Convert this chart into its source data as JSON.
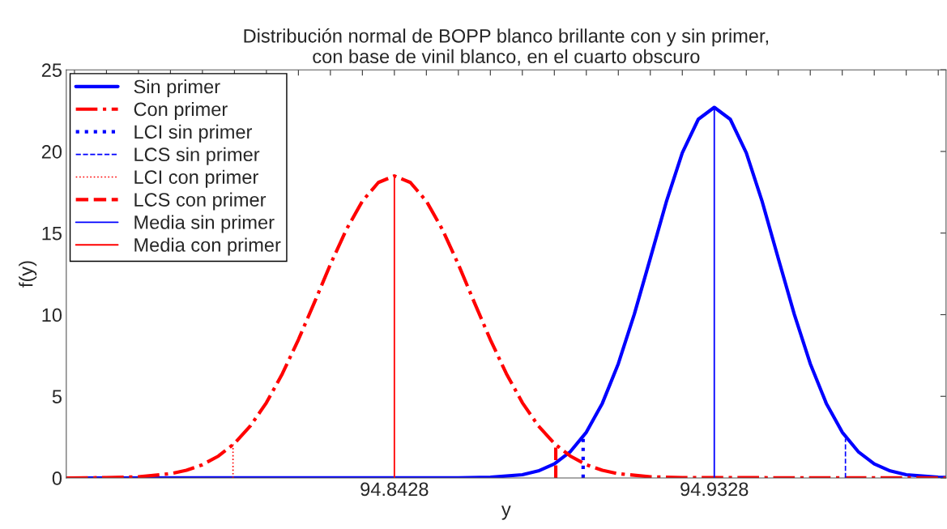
{
  "chart_data": {
    "type": "line",
    "title": "Distribución normal de BOPP blanco brillante con y sin primer,\ncon base de vinil blanco, en el cuarto obscuro",
    "xlabel": "y",
    "ylabel": "f(y)",
    "xlim": [
      94.7505,
      94.998
    ],
    "ylim": [
      0,
      25
    ],
    "xticks": [
      {
        "value": 94.7528,
        "label": null
      },
      {
        "value": 94.7618,
        "label": null
      },
      {
        "value": 94.7708,
        "label": null
      },
      {
        "value": 94.7798,
        "label": null
      },
      {
        "value": 94.7888,
        "label": null
      },
      {
        "value": 94.7978,
        "label": null
      },
      {
        "value": 94.8068,
        "label": null
      },
      {
        "value": 94.8158,
        "label": null
      },
      {
        "value": 94.8248,
        "label": null
      },
      {
        "value": 94.8338,
        "label": null
      },
      94.8428,
      {
        "value": 94.8518,
        "label": null
      },
      {
        "value": 94.8608,
        "label": null
      },
      {
        "value": 94.8698,
        "label": null
      },
      {
        "value": 94.8788,
        "label": null
      },
      {
        "value": 94.8878,
        "label": null
      },
      {
        "value": 94.8968,
        "label": null
      },
      {
        "value": 94.9058,
        "label": null
      },
      {
        "value": 94.9148,
        "label": null
      },
      {
        "value": 94.9238,
        "label": null
      },
      94.9328,
      {
        "value": 94.9418,
        "label": null
      },
      {
        "value": 94.9508,
        "label": null
      },
      {
        "value": 94.9598,
        "label": null
      },
      {
        "value": 94.9688,
        "label": null
      },
      {
        "value": 94.9778,
        "label": null
      },
      {
        "value": 94.9868,
        "label": null
      },
      {
        "value": 94.9958,
        "label": null
      }
    ],
    "yticks": [
      0,
      5,
      10,
      15,
      20,
      25
    ],
    "grid": false,
    "legend": "top left",
    "marker": "none",
    "series": [
      {
        "name": "Sin primer",
        "color": "#0000ff",
        "line_style": "solid",
        "x": [
          94.7505,
          94.8608,
          94.8698,
          94.8788,
          94.8833,
          94.8878,
          94.8923,
          94.8968,
          94.9013,
          94.9058,
          94.9103,
          94.9148,
          94.9193,
          94.9238,
          94.9283,
          94.9328,
          94.9373,
          94.9418,
          94.9463,
          94.9508,
          94.9553,
          94.9598,
          94.9643,
          94.9688,
          94.9733,
          94.9778,
          94.9823,
          94.9868,
          94.9958,
          94.998
        ],
        "values": [
          0,
          0.01,
          0.04,
          0.2,
          0.43,
          0.86,
          1.61,
          2.8,
          4.57,
          7.0,
          10.03,
          13.45,
          16.91,
          19.92,
          21.97,
          22.7,
          21.97,
          19.92,
          16.91,
          13.45,
          10.03,
          7.0,
          4.57,
          2.8,
          1.61,
          0.86,
          0.43,
          0.2,
          0.04,
          0.03
        ]
      },
      {
        "name": "Con primer",
        "color": "#ff0000",
        "line_style": "dashdot",
        "x": [
          94.7505,
          94.7618,
          94.7708,
          94.7798,
          94.7843,
          94.7888,
          94.7933,
          94.7978,
          94.8023,
          94.8068,
          94.8113,
          94.8158,
          94.8203,
          94.8248,
          94.8293,
          94.8338,
          94.8383,
          94.8428,
          94.8473,
          94.8518,
          94.8563,
          94.8608,
          94.8653,
          94.8698,
          94.8743,
          94.8788,
          94.8833,
          94.8878,
          94.8923,
          94.8968,
          94.9013,
          94.9058,
          94.9148,
          94.9238,
          94.998
        ],
        "values": [
          0,
          0.02,
          0.07,
          0.26,
          0.47,
          0.81,
          1.34,
          2.11,
          3.19,
          4.61,
          6.39,
          8.47,
          10.75,
          13.08,
          15.22,
          16.96,
          18.1,
          18.5,
          18.1,
          16.96,
          15.22,
          13.08,
          10.75,
          8.47,
          6.39,
          4.61,
          3.19,
          2.11,
          1.34,
          0.81,
          0.47,
          0.26,
          0.07,
          0.02,
          0
        ]
      },
      {
        "name": "LCI sin primer",
        "color": "#0000ff",
        "line_style": "dotted",
        "x": [
          94.8959,
          94.8959
        ],
        "values": [
          0,
          2.4
        ]
      },
      {
        "name": "LCS sin primer",
        "color": "#0000ff",
        "line_style": "dashed",
        "x": [
          94.9697,
          94.9697
        ],
        "values": [
          0,
          2.4
        ]
      },
      {
        "name": "LCI con primer",
        "color": "#ff0000",
        "line_style": "dotted",
        "x": [
          94.7974,
          94.7974
        ],
        "values": [
          0,
          2.1
        ]
      },
      {
        "name": "LCS con primer",
        "color": "#ff0000",
        "line_style": "dashed",
        "x": [
          94.8882,
          94.8882
        ],
        "values": [
          0,
          2.1
        ]
      },
      {
        "name": "Media sin primer",
        "color": "#0000ff",
        "line_style": "solid",
        "x": [
          94.9328,
          94.9328
        ],
        "values": [
          0,
          22.7
        ]
      },
      {
        "name": "Media con primer",
        "color": "#ff0000",
        "line_style": "solid",
        "x": [
          94.8428,
          94.8428
        ],
        "values": [
          0,
          18.5
        ]
      }
    ]
  }
}
